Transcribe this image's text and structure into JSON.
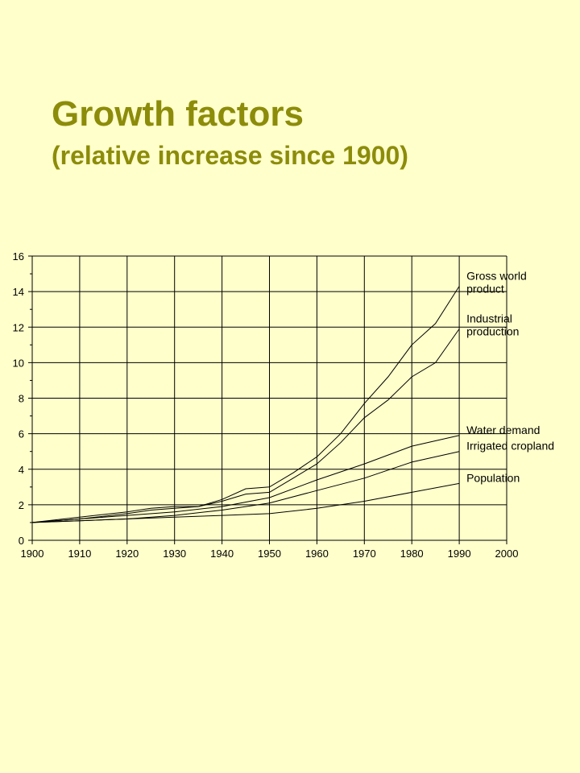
{
  "slide": {
    "title": "Growth factors",
    "subtitle": "(relative increase since 1900)"
  },
  "colors": {
    "background": "#FFFFCC",
    "title": "#8C8C0A",
    "lines": "#000000"
  },
  "chart_data": {
    "type": "line",
    "title": "",
    "xlabel": "",
    "ylabel": "",
    "xlim": [
      1900,
      2000
    ],
    "ylim": [
      0,
      16
    ],
    "x_ticks": [
      1900,
      1910,
      1920,
      1930,
      1940,
      1950,
      1960,
      1970,
      1980,
      1990,
      2000
    ],
    "y_ticks": [
      0,
      2,
      4,
      6,
      8,
      10,
      12,
      14,
      16
    ],
    "grid": true,
    "legend": "inline labels at right end of lines",
    "series": [
      {
        "name": "Gross world product",
        "label_lines": [
          "Gross world",
          "product"
        ],
        "x": [
          1900,
          1910,
          1920,
          1925,
          1930,
          1935,
          1940,
          1945,
          1950,
          1955,
          1960,
          1965,
          1970,
          1975,
          1980,
          1985,
          1990
        ],
        "y": [
          1.0,
          1.2,
          1.5,
          1.7,
          1.8,
          1.9,
          2.3,
          2.9,
          3.0,
          3.8,
          4.7,
          6.0,
          7.7,
          9.2,
          11.0,
          12.2,
          14.3
        ]
      },
      {
        "name": "Industrial production",
        "label_lines": [
          "Industrial",
          "production"
        ],
        "x": [
          1900,
          1910,
          1920,
          1925,
          1930,
          1935,
          1940,
          1945,
          1950,
          1955,
          1960,
          1965,
          1970,
          1975,
          1980,
          1985,
          1990
        ],
        "y": [
          1.0,
          1.3,
          1.6,
          1.8,
          1.9,
          1.9,
          2.2,
          2.6,
          2.7,
          3.5,
          4.3,
          5.5,
          6.9,
          7.9,
          9.2,
          10.0,
          11.9
        ]
      },
      {
        "name": "Water demand",
        "label_lines": [
          "Water demand"
        ],
        "x": [
          1900,
          1910,
          1920,
          1930,
          1940,
          1950,
          1960,
          1970,
          1980,
          1990
        ],
        "y": [
          1.0,
          1.2,
          1.4,
          1.6,
          1.9,
          2.4,
          3.4,
          4.3,
          5.3,
          5.9
        ]
      },
      {
        "name": "Irrigated cropland",
        "label_lines": [
          "Irrigated cropland"
        ],
        "x": [
          1900,
          1910,
          1920,
          1930,
          1940,
          1950,
          1960,
          1970,
          1980,
          1990
        ],
        "y": [
          1.0,
          1.1,
          1.2,
          1.4,
          1.7,
          2.1,
          2.8,
          3.5,
          4.4,
          5.0
        ]
      },
      {
        "name": "Population",
        "label_lines": [
          "Population"
        ],
        "x": [
          1900,
          1910,
          1920,
          1930,
          1940,
          1950,
          1960,
          1970,
          1980,
          1990
        ],
        "y": [
          1.0,
          1.1,
          1.2,
          1.3,
          1.4,
          1.5,
          1.8,
          2.2,
          2.7,
          3.2
        ]
      }
    ]
  }
}
